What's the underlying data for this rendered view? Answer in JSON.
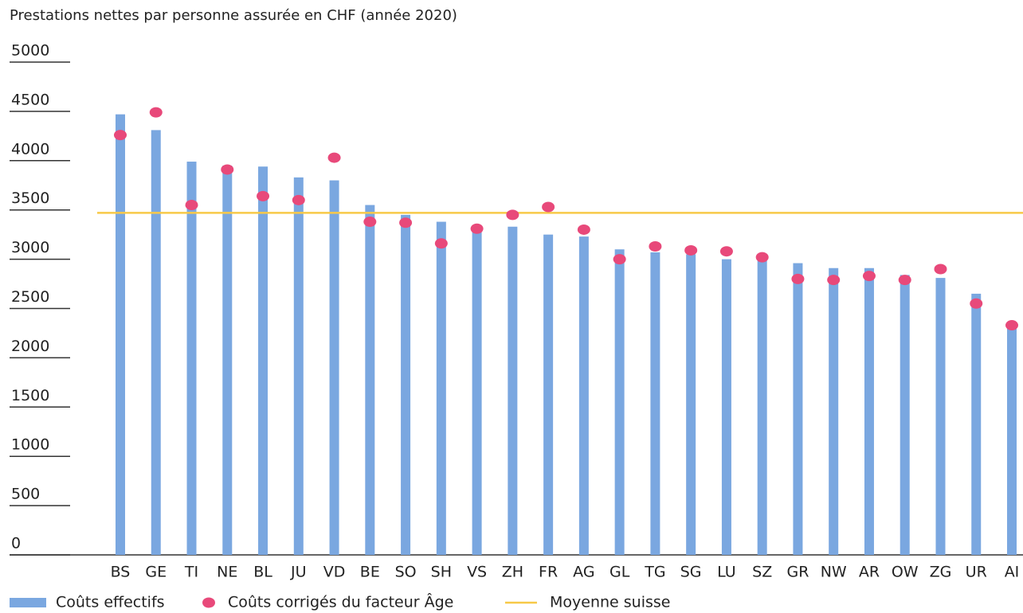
{
  "chart_data": {
    "type": "bar",
    "title": "Prestations nettes par personne assurée en CHF (année 2020)",
    "categories": [
      "BS",
      "GE",
      "TI",
      "NE",
      "BL",
      "JU",
      "VD",
      "BE",
      "SO",
      "SH",
      "VS",
      "ZH",
      "FR",
      "AG",
      "GL",
      "TG",
      "SG",
      "LU",
      "SZ",
      "GR",
      "NW",
      "AR",
      "OW",
      "ZG",
      "UR",
      "AI"
    ],
    "series": [
      {
        "name": "Coûts effectifs",
        "type": "bar",
        "color": "#7aa7e0",
        "values": [
          4470,
          4310,
          3990,
          3950,
          3940,
          3830,
          3800,
          3550,
          3450,
          3380,
          3330,
          3330,
          3250,
          3230,
          3100,
          3070,
          3050,
          3000,
          3000,
          2960,
          2910,
          2910,
          2840,
          2810,
          2650,
          2330
        ]
      },
      {
        "name": "Coûts corrigés du facteur Âge",
        "type": "scatter",
        "color": "#e8497a",
        "values": [
          4260,
          4490,
          3550,
          3910,
          3640,
          3600,
          4030,
          3380,
          3370,
          3160,
          3310,
          3450,
          3530,
          3300,
          3000,
          3130,
          3090,
          3080,
          3020,
          2800,
          2790,
          2830,
          2790,
          2900,
          2550,
          2330
        ]
      }
    ],
    "reference_line": {
      "name": "Moyenne suisse",
      "value": 3470,
      "color": "#f7c948"
    },
    "ylim": [
      0,
      5000
    ],
    "yticks": [
      0,
      500,
      1000,
      1500,
      2000,
      2500,
      3000,
      3500,
      4000,
      4500,
      5000
    ]
  }
}
